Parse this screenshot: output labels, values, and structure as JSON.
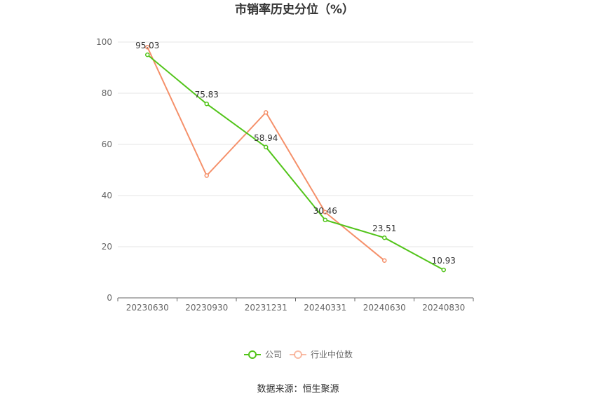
{
  "chart_data": {
    "type": "line",
    "title": "市销率历史分位（%）",
    "categories": [
      "20230630",
      "20230930",
      "20231231",
      "20240331",
      "20240630",
      "20240830"
    ],
    "ylim": [
      0,
      100
    ],
    "yticks": [
      "0",
      "20",
      "40",
      "60",
      "80",
      "100"
    ],
    "grid": true,
    "legend_position": "bottom-center",
    "series": [
      {
        "name": "公司",
        "color": "#52c41a",
        "values": [
          95.03,
          75.83,
          58.94,
          30.46,
          23.51,
          10.93
        ],
        "labels": [
          "95.03",
          "75.83",
          "58.94",
          "30.46",
          "23.51",
          "10.93"
        ]
      },
      {
        "name": "行业中位数",
        "color": "#f5906a",
        "values": [
          98.0,
          47.8,
          72.5,
          33.5,
          14.6,
          null
        ]
      }
    ]
  },
  "source_text": "数据来源：恒生聚源"
}
